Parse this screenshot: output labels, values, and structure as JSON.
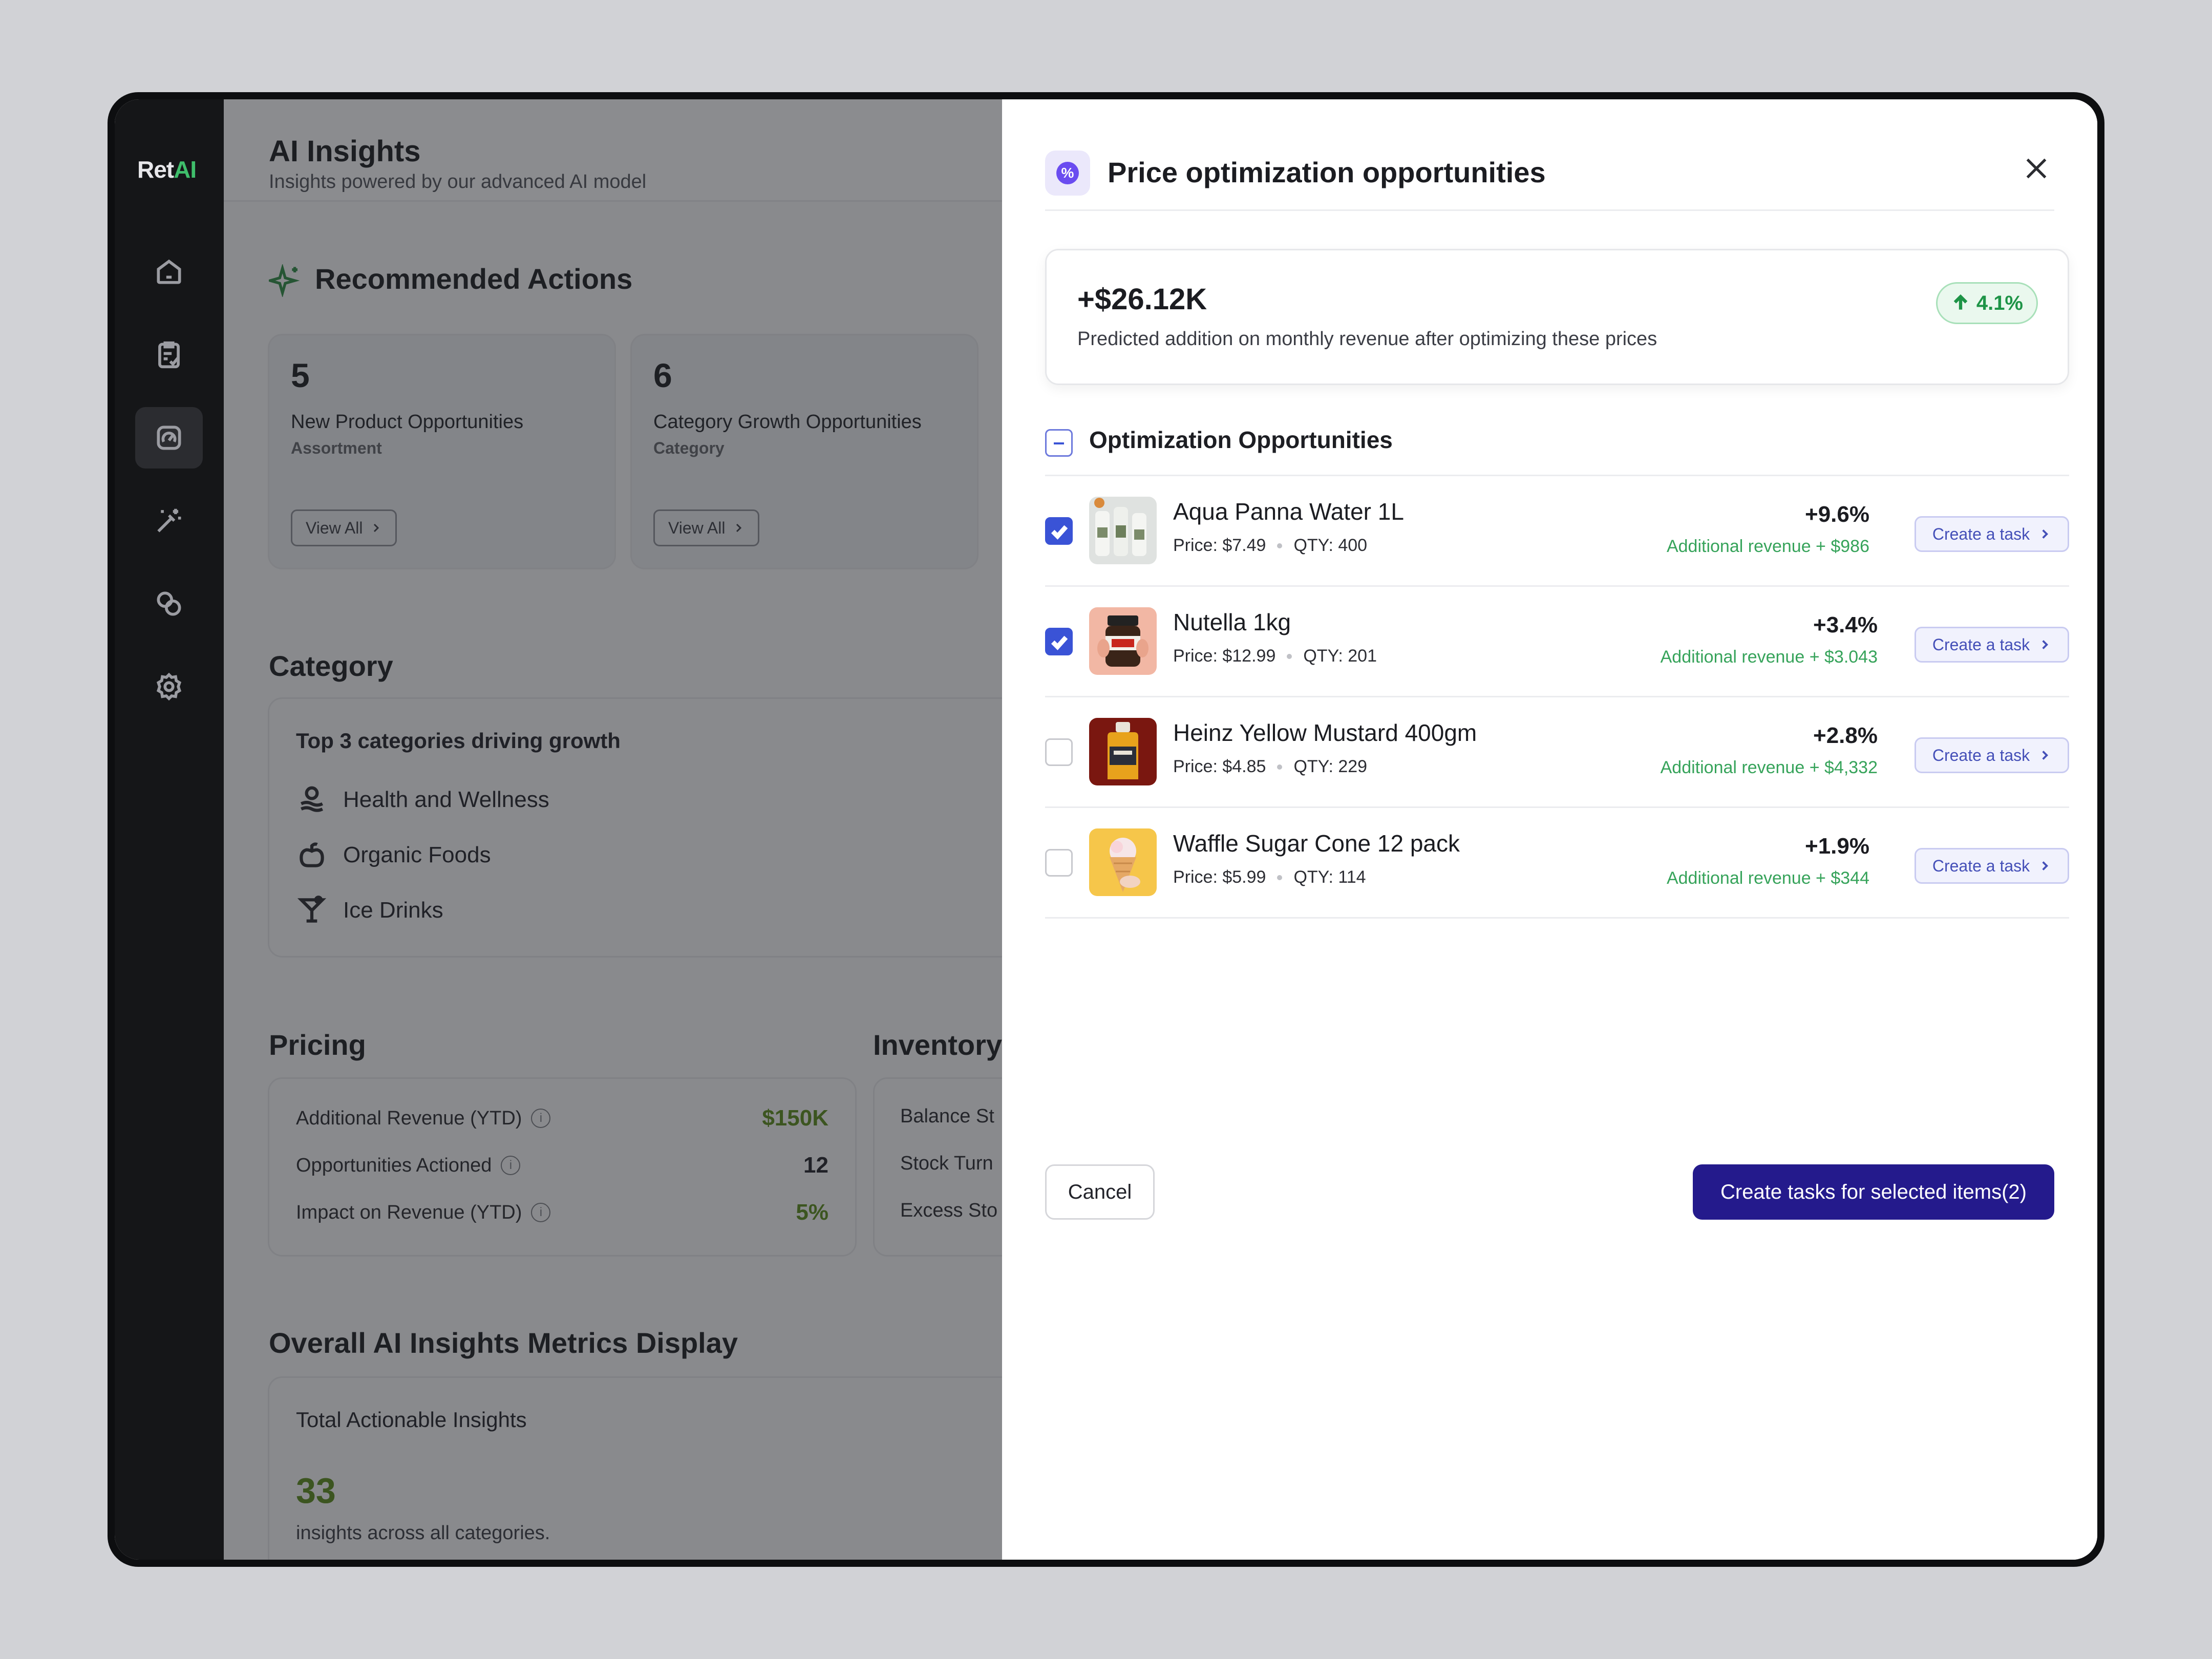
{
  "app": {
    "logo_main": "Ret",
    "logo_accent": "AI"
  },
  "sidebar": {
    "items": [
      {
        "icon": "home-icon"
      },
      {
        "icon": "clipboard-check-icon"
      },
      {
        "icon": "insights-gauge-icon",
        "active": true
      },
      {
        "icon": "magic-wand-icon"
      },
      {
        "icon": "coins-icon"
      },
      {
        "icon": "gear-icon"
      }
    ]
  },
  "dashboard": {
    "title": "AI Insights",
    "subtitle": "Insights powered by our advanced AI model",
    "recommended": {
      "title": "Recommended Actions",
      "cards": [
        {
          "count": "5",
          "label": "New Product Opportunities",
          "tag": "Assortment",
          "button": "View All"
        },
        {
          "count": "6",
          "label": "Category Growth Opportunities",
          "tag": "Category",
          "button": "View All"
        }
      ]
    },
    "category": {
      "title": "Category",
      "card_title": "Top 3 categories driving growth",
      "items": [
        "Health and Wellness",
        "Organic Foods",
        "Ice Drinks"
      ]
    },
    "pricing": {
      "title": "Pricing",
      "rows": [
        {
          "label": "Additional Revenue (YTD)",
          "value": "$150K"
        },
        {
          "label": "Opportunities Actioned",
          "value": "12"
        },
        {
          "label": "Impact on Revenue (YTD)",
          "value": "5%"
        }
      ]
    },
    "inventory": {
      "title": "Inventory",
      "rows": [
        "Balance St",
        "Stock Turn",
        "Excess Sto"
      ]
    },
    "overall": {
      "title": "Overall AI Insights Metrics Display",
      "card_title": "Total Actionable Insights",
      "value": "33",
      "desc": "insights across all categories."
    }
  },
  "drawer": {
    "title": "Price optimization opportunities",
    "summary": {
      "value": "+$26.12K",
      "description": "Predicted addition on monthly revenue after optimizing these prices",
      "change": "4.1%"
    },
    "list_title": "Optimization Opportunities",
    "items": [
      {
        "name": "Aqua Panna Water 1L",
        "price": "Price: $7.49",
        "qty": "QTY: 400",
        "change": "+9.6%",
        "revenue": "Additional revenue + $986",
        "checked": true,
        "button": "Create a task"
      },
      {
        "name": "Nutella 1kg",
        "price": "Price: $12.99",
        "qty": "QTY: 201",
        "change": "+3.4%",
        "revenue": "Additional revenue + $3.043",
        "checked": true,
        "button": "Create a task"
      },
      {
        "name": "Heinz Yellow Mustard 400gm",
        "price": "Price: $4.85",
        "qty": "QTY: 229",
        "change": "+2.8%",
        "revenue": "Additional revenue + $4,332",
        "checked": false,
        "button": "Create a task"
      },
      {
        "name": "Waffle Sugar Cone 12 pack",
        "price": "Price: $5.99",
        "qty": "QTY: 114",
        "change": "+1.9%",
        "revenue": "Additional revenue + $344",
        "checked": false,
        "button": "Create a task"
      }
    ],
    "cancel_label": "Cancel",
    "create_label": "Create tasks for selected items(2)"
  },
  "colors": {
    "primary": "#241a8c",
    "checkbox": "#3a53d6",
    "positive": "#36a35a",
    "accent_logo": "#3fbe6b"
  }
}
